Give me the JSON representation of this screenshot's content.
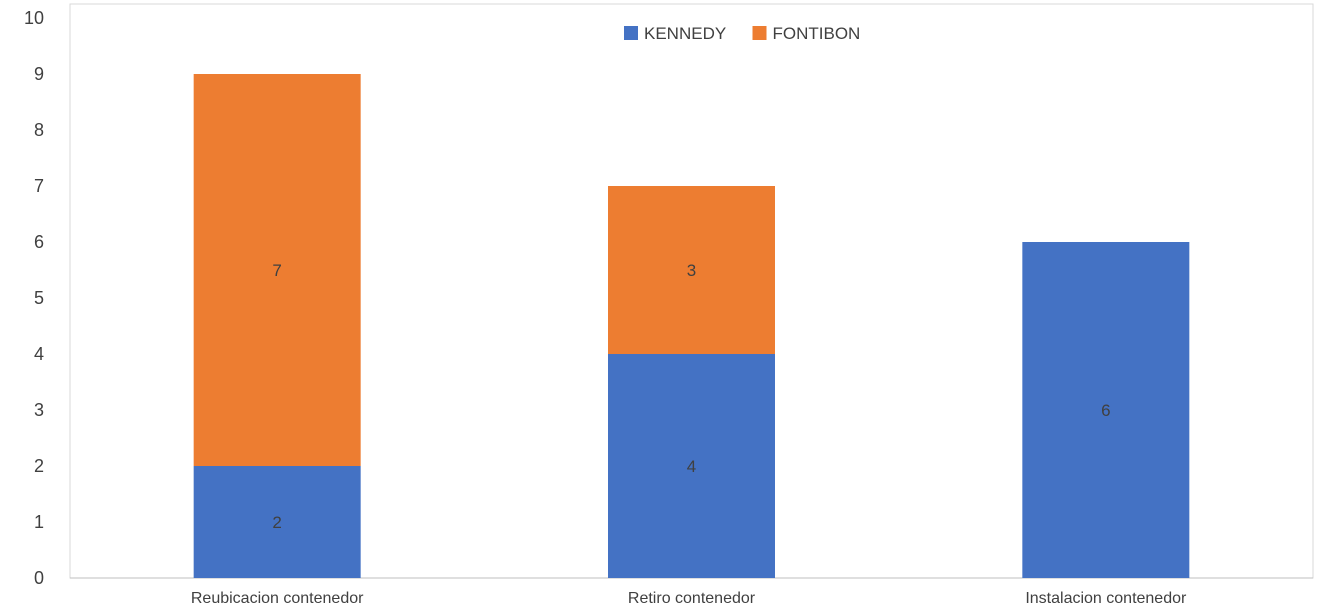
{
  "chart_data": {
    "type": "bar",
    "stacked": true,
    "categories": [
      "Reubicacion contenedor",
      "Retiro contenedor",
      "Instalacion contenedor"
    ],
    "series": [
      {
        "name": "KENNEDY",
        "values": [
          2,
          4,
          6
        ],
        "color": "#4472C4"
      },
      {
        "name": "FONTIBON",
        "values": [
          7,
          3,
          0
        ],
        "color": "#ED7D31"
      }
    ],
    "ylim": [
      0,
      10
    ],
    "yticks": [
      0,
      1,
      2,
      3,
      4,
      5,
      6,
      7,
      8,
      9,
      10
    ],
    "legend_position": "top-right",
    "grid": false,
    "data_labels": true
  }
}
